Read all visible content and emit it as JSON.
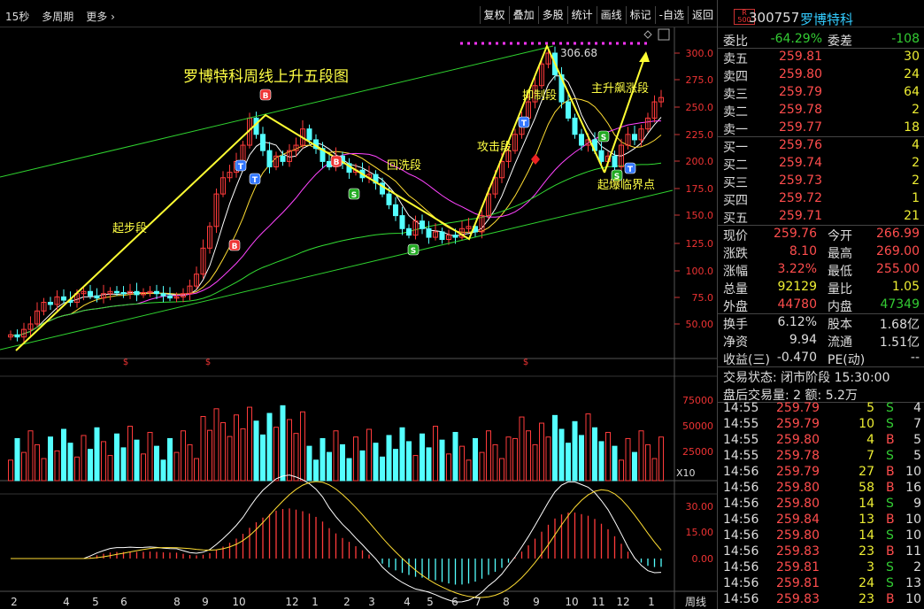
{
  "toolbar": {
    "interval": "15秒",
    "multi_period": "多周期",
    "more": "更多",
    "buttons": [
      "复权",
      "叠加",
      "多股",
      "统计",
      "画线",
      "标记",
      "-自选",
      "返回"
    ]
  },
  "chart": {
    "title": "罗博特科周线上升五段图",
    "peak_label": "306.68",
    "annotations": [
      "起步段",
      "回洗段",
      "攻击段",
      "抑制段",
      "主升飙涨段",
      "起爆临界点"
    ],
    "price_ticks": [
      "300.0",
      "275.0",
      "250.0",
      "225.0",
      "200.0",
      "175.0",
      "150.0",
      "125.0",
      "100.0",
      "75.0",
      "50.00"
    ],
    "volume_ticks": [
      "75000",
      "50000",
      "25000"
    ],
    "volume_unit": "X10",
    "macd_ticks": [
      "30.00",
      "15.00",
      "0.00"
    ],
    "x_labels": [
      "2",
      "4",
      "5",
      "6",
      "8",
      "9",
      "10",
      "12",
      "1",
      "2",
      "3",
      "4",
      "5",
      "6",
      "7",
      "8",
      "9",
      "10",
      "11",
      "12",
      "1"
    ],
    "period_label": "周线",
    "markers": {
      "b": "B",
      "t": "T",
      "s": "S"
    },
    "s_marker_bottom": "$"
  },
  "quote": {
    "badge_top": "R",
    "badge_bottom": "500",
    "code": "300757",
    "name": "罗博特科",
    "weibi_label": "委比",
    "weibi_value": "-64.29%",
    "weicha_label": "委差",
    "weicha_value": "-108",
    "sells": [
      {
        "label": "卖五",
        "price": "259.81",
        "vol": "30"
      },
      {
        "label": "卖四",
        "price": "259.80",
        "vol": "24"
      },
      {
        "label": "卖三",
        "price": "259.79",
        "vol": "64"
      },
      {
        "label": "卖二",
        "price": "259.78",
        "vol": "2"
      },
      {
        "label": "卖一",
        "price": "259.77",
        "vol": "18"
      }
    ],
    "buys": [
      {
        "label": "买一",
        "price": "259.76",
        "vol": "4"
      },
      {
        "label": "买二",
        "price": "259.74",
        "vol": "2"
      },
      {
        "label": "买三",
        "price": "259.73",
        "vol": "2"
      },
      {
        "label": "买四",
        "price": "259.72",
        "vol": "1"
      },
      {
        "label": "买五",
        "price": "259.71",
        "vol": "21"
      }
    ],
    "stats": [
      {
        "l1": "现价",
        "v1": "259.76",
        "c1": "red",
        "l2": "今开",
        "v2": "266.99",
        "c2": "red"
      },
      {
        "l1": "涨跌",
        "v1": "8.10",
        "c1": "red",
        "l2": "最高",
        "v2": "269.00",
        "c2": "red"
      },
      {
        "l1": "涨幅",
        "v1": "3.22%",
        "c1": "red",
        "l2": "最低",
        "v2": "255.00",
        "c2": "red"
      },
      {
        "l1": "总量",
        "v1": "92129",
        "c1": "yel",
        "l2": "量比",
        "v2": "1.05",
        "c2": "yel"
      },
      {
        "l1": "外盘",
        "v1": "44780",
        "c1": "red",
        "l2": "内盘",
        "v2": "47349",
        "c2": "green"
      }
    ],
    "stats2": [
      {
        "l1": "换手",
        "v1": "6.12%",
        "l2": "股本",
        "v2": "1.68亿"
      },
      {
        "l1": "净资",
        "v1": "9.94",
        "l2": "流通",
        "v2": "1.51亿"
      },
      {
        "l1": "收益(三)",
        "v1": "-0.470",
        "l2": "PE(动)",
        "v2": "--"
      }
    ],
    "trade_status": "交易状态: 闭市阶段 15:30:00",
    "after_hours": "盘后交易量: 2  额: 5.2万",
    "ticks": [
      {
        "t": "14:55",
        "p": "259.79",
        "v": "5",
        "d": "S",
        "n": "4"
      },
      {
        "t": "14:55",
        "p": "259.79",
        "v": "10",
        "d": "S",
        "n": "7"
      },
      {
        "t": "14:55",
        "p": "259.80",
        "v": "4",
        "d": "B",
        "n": "5"
      },
      {
        "t": "14:55",
        "p": "259.78",
        "v": "7",
        "d": "S",
        "n": "5"
      },
      {
        "t": "14:56",
        "p": "259.79",
        "v": "27",
        "d": "B",
        "n": "10"
      },
      {
        "t": "14:56",
        "p": "259.80",
        "v": "58",
        "d": "B",
        "n": "16"
      },
      {
        "t": "14:56",
        "p": "259.80",
        "v": "14",
        "d": "S",
        "n": "9"
      },
      {
        "t": "14:56",
        "p": "259.84",
        "v": "13",
        "d": "B",
        "n": "10"
      },
      {
        "t": "14:56",
        "p": "259.80",
        "v": "14",
        "d": "S",
        "n": "10"
      },
      {
        "t": "14:56",
        "p": "259.83",
        "v": "23",
        "d": "B",
        "n": "11"
      },
      {
        "t": "14:56",
        "p": "259.81",
        "v": "3",
        "d": "S",
        "n": "2"
      },
      {
        "t": "14:56",
        "p": "259.81",
        "v": "24",
        "d": "S",
        "n": "13"
      },
      {
        "t": "14:56",
        "p": "259.83",
        "v": "23",
        "d": "B",
        "n": "10"
      }
    ]
  }
}
